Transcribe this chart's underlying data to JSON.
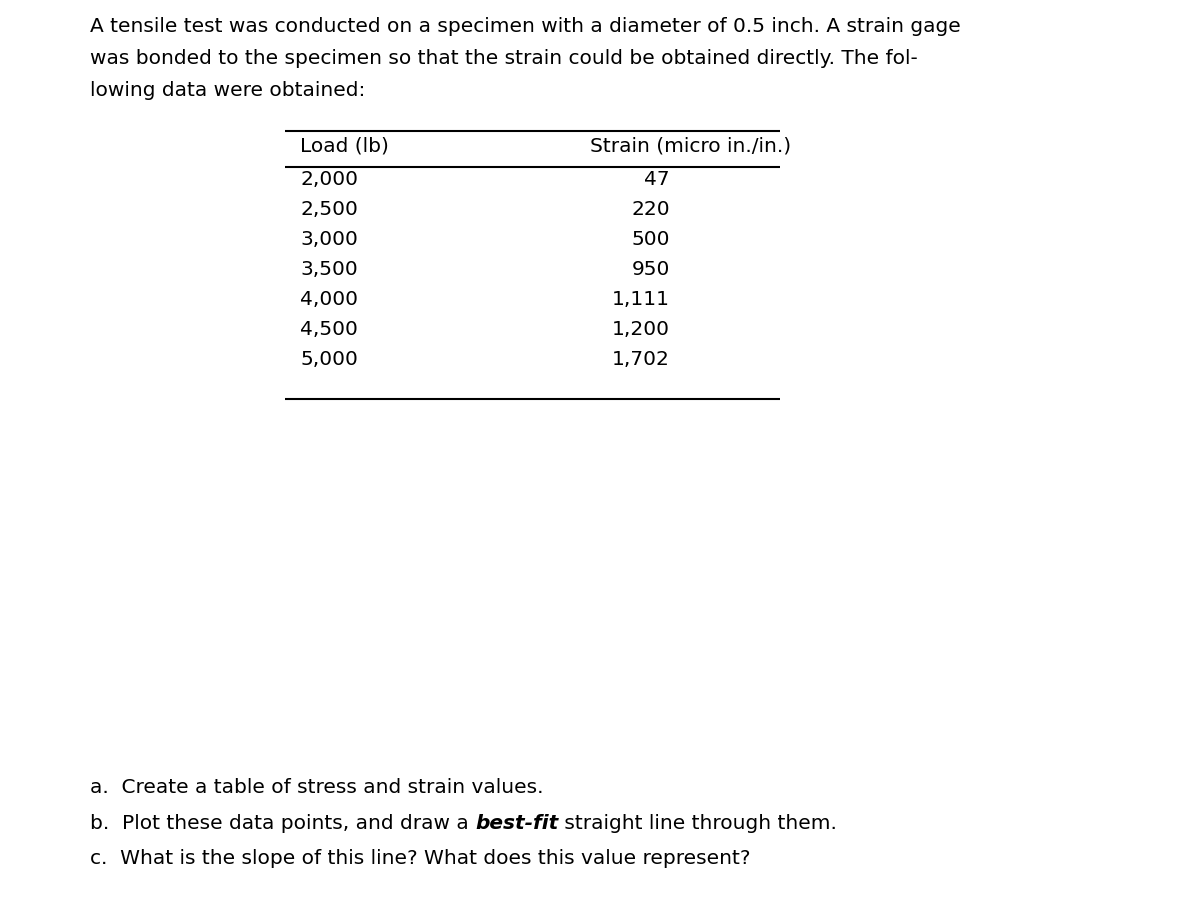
{
  "background_color": "#ffffff",
  "intro_lines": [
    "A tensile test was conducted on a specimen with a diameter of 0.5 inch. A strain gage",
    "was bonded to the specimen so that the strain could be obtained directly. The fol-",
    "lowing data were obtained:"
  ],
  "col1_header": "Load (lb)",
  "col2_header": "Strain (micro in./in.)",
  "loads": [
    "2,000",
    "2,500",
    "3,000",
    "3,500",
    "4,000",
    "4,500",
    "5,000"
  ],
  "strains": [
    "47",
    "220",
    "500",
    "950",
    "1,111",
    "1,200",
    "1,702"
  ],
  "question_a": "a.  Create a table of stress and strain values.",
  "question_b_prefix": "b.  Plot these data points, and draw a ",
  "question_b_bold": "best-fit",
  "question_b_suffix": " straight line through them.",
  "question_c": "c.  What is the slope of this line? What does this value represent?",
  "font_size": 14.5,
  "font_family": "DejaVu Sans"
}
